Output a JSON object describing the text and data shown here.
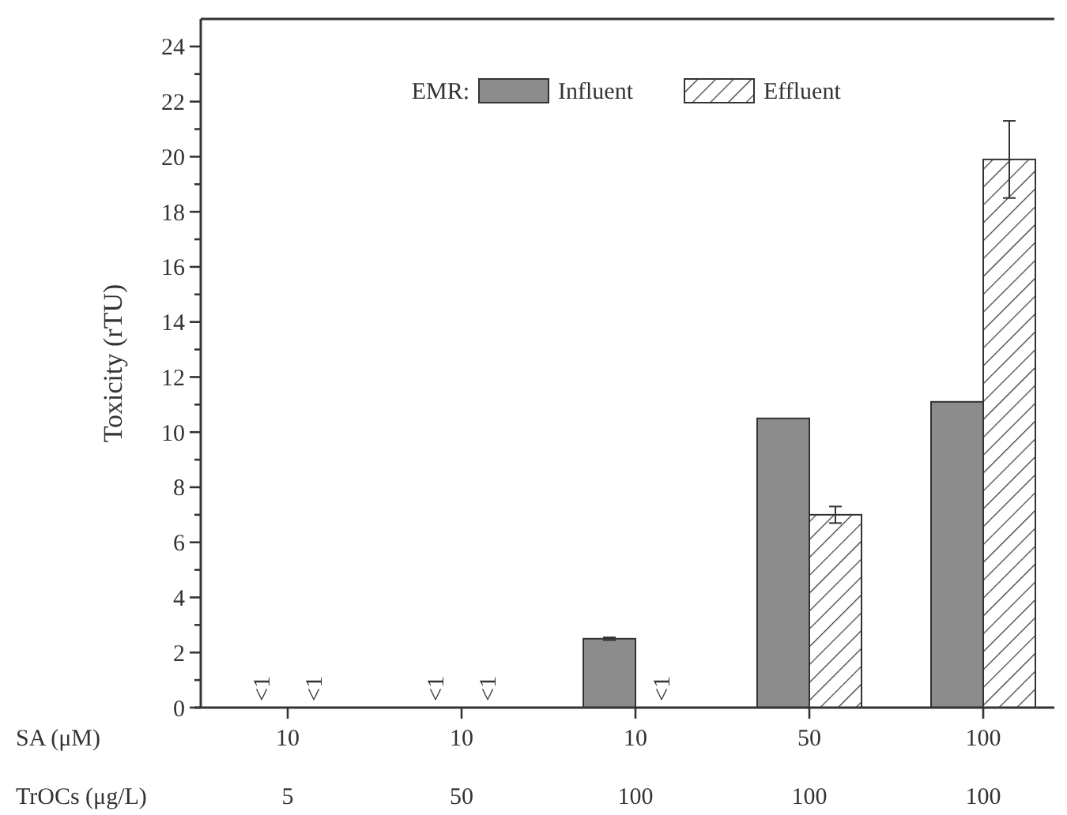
{
  "chart_data": {
    "type": "bar",
    "ylabel": "Toxicity (rTU)",
    "legend_title": "EMR:",
    "legend": "top",
    "categories": [
      "10\n5",
      "10\n50",
      "10\n100",
      "50\n100",
      "100\n100"
    ],
    "series": [
      {
        "name": "Influent",
        "color": "#8c8c8c",
        "values": [
          null,
          null,
          2.5,
          10.5,
          11.1
        ],
        "errors": [
          null,
          null,
          0.05,
          null,
          null
        ]
      },
      {
        "name": "Effluent",
        "color": "#333333",
        "values": [
          null,
          null,
          null,
          7.0,
          19.9
        ],
        "errors": [
          null,
          null,
          null,
          0.3,
          1.4
        ]
      }
    ],
    "ylim": [
      0,
      25
    ],
    "yticks": [
      0,
      {
        "value": 1,
        "label": null
      },
      2,
      {
        "value": 3,
        "label": null
      },
      4,
      {
        "value": 5,
        "label": null
      },
      6,
      {
        "value": 7,
        "label": null
      },
      8,
      {
        "value": 9,
        "label": null
      },
      10,
      {
        "value": 11,
        "label": null
      },
      12,
      {
        "value": 13,
        "label": null
      },
      14,
      {
        "value": 15,
        "label": null
      },
      16,
      {
        "value": 17,
        "label": null
      },
      18,
      {
        "value": 19,
        "label": null
      },
      20,
      {
        "value": 21,
        "label": null
      },
      22,
      {
        "value": 23,
        "label": null
      },
      24
    ],
    "xlabel": "SA (μM)\nTrOCs (μg/L)",
    "annotations": [
      "<1",
      "<1",
      "<1",
      "<1",
      "<1"
    ]
  }
}
